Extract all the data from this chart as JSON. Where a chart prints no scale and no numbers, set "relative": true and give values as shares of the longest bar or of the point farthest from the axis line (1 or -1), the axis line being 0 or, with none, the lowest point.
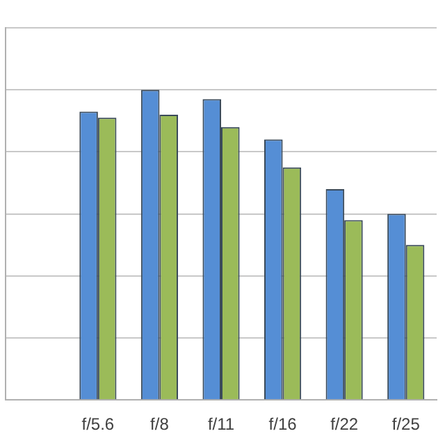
{
  "chart_data": {
    "type": "bar",
    "relative": true,
    "grid": "y",
    "categories": [
      null,
      "f/5.6",
      "f/8",
      "f/11",
      "f/16",
      "f/22",
      "f/25"
    ],
    "series": [
      {
        "color": "#558ed5",
        "values": [
          null,
          0.93,
          1,
          0.97,
          0.84,
          0.68,
          0.6
        ]
      },
      {
        "color": "#9bbb59",
        "values": [
          null,
          0.91,
          0.92,
          0.88,
          0.75,
          0.58,
          0.5
        ]
      }
    ]
  }
}
